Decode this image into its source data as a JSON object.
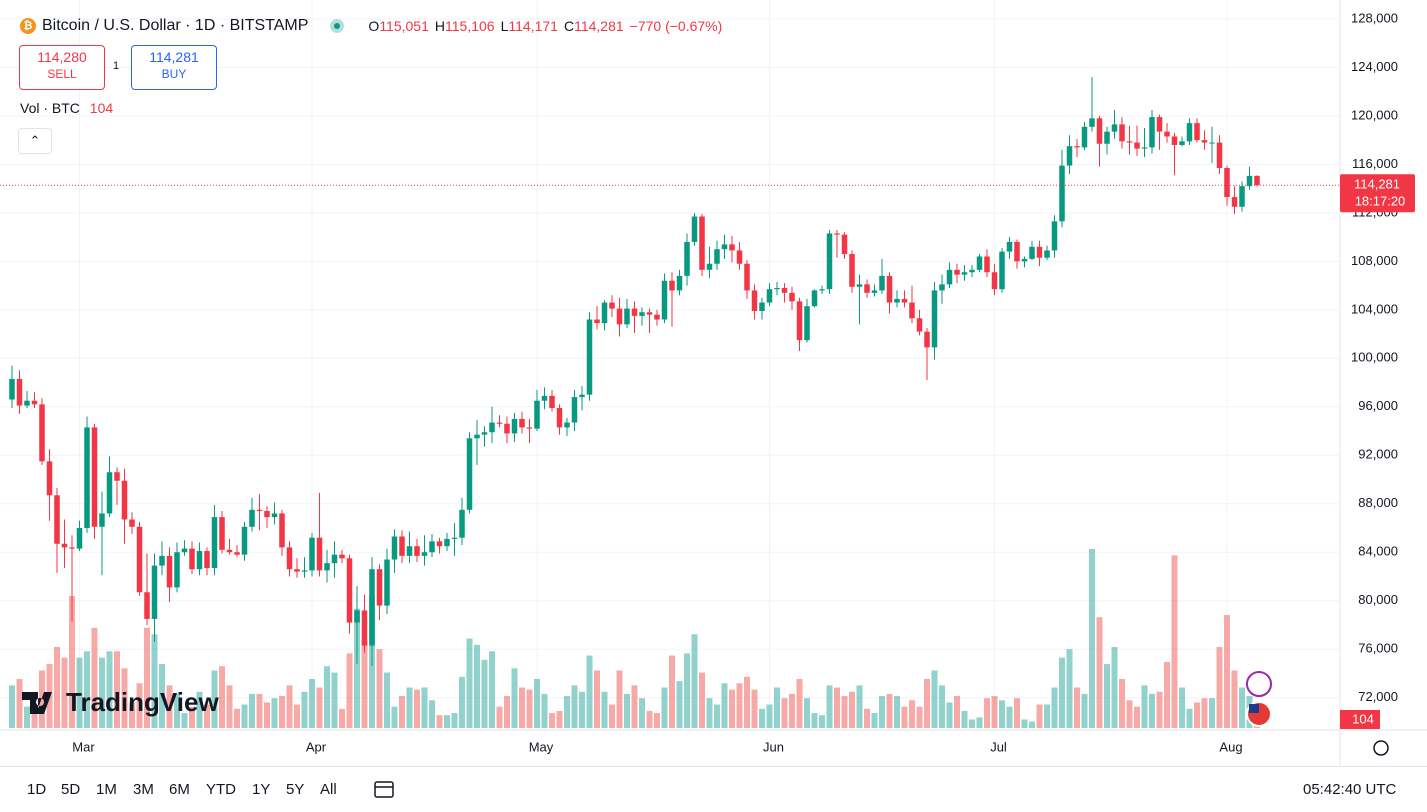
{
  "header": {
    "symbol": "Bitcoin / U.S. Dollar · 1D · BITSTAMP",
    "ohlc": [
      {
        "label": "O",
        "value": "115,051"
      },
      {
        "label": "H",
        "value": "115,106"
      },
      {
        "label": "L",
        "value": "114,171"
      },
      {
        "label": "C",
        "value": "114,281"
      }
    ],
    "change": "−770 (−0.67%)",
    "sell": {
      "price": "114,280",
      "label": "SELL"
    },
    "spread": "1",
    "buy": {
      "price": "114,281",
      "label": "BUY"
    },
    "volume_title": "Vol · BTC"
  },
  "toolbar": {
    "ranges": [
      "1D",
      "5D",
      "1M",
      "3M",
      "6M",
      "YTD",
      "1Y",
      "5Y",
      "All"
    ],
    "clock": "05:42:40 UTC"
  },
  "logo": "TradingView",
  "chart_data": {
    "type": "candlestick",
    "up_color": "#089981",
    "down_color": "#f23645",
    "volume_up_color": "#26a69a",
    "volume_down_color": "#ef5350",
    "grid": true,
    "categories": [
      null,
      null,
      null,
      null,
      null,
      null,
      null,
      null,
      null,
      "Mar",
      null,
      null,
      null,
      null,
      null,
      null,
      null,
      null,
      null,
      null,
      null,
      null,
      null,
      null,
      null,
      null,
      null,
      null,
      null,
      null,
      null,
      null,
      null,
      null,
      null,
      null,
      null,
      null,
      null,
      null,
      "Apr",
      null,
      null,
      null,
      null,
      null,
      null,
      null,
      null,
      null,
      null,
      null,
      null,
      null,
      null,
      null,
      null,
      null,
      null,
      null,
      null,
      null,
      null,
      null,
      null,
      null,
      null,
      null,
      null,
      null,
      "May",
      null,
      null,
      null,
      null,
      null,
      null,
      null,
      null,
      null,
      null,
      null,
      null,
      null,
      null,
      null,
      null,
      null,
      null,
      null,
      null,
      null,
      null,
      null,
      null,
      null,
      null,
      null,
      null,
      null,
      null,
      "Jun",
      null,
      null,
      null,
      null,
      null,
      null,
      null,
      null,
      null,
      null,
      null,
      null,
      null,
      null,
      null,
      null,
      null,
      null,
      null,
      null,
      null,
      null,
      null,
      null,
      null,
      null,
      null,
      null,
      null,
      "Jul",
      null,
      null,
      null,
      null,
      null,
      null,
      null,
      null,
      null,
      null,
      null,
      null,
      null,
      null,
      null,
      null,
      null,
      null,
      null,
      null,
      null,
      null,
      null,
      null,
      null,
      null,
      null,
      null,
      null,
      null,
      "Aug",
      null,
      null,
      null,
      null
    ],
    "open": [
      96600,
      98300,
      96100,
      96500,
      96200,
      91500,
      88700,
      84700,
      84400,
      84300,
      86000,
      94300,
      86100,
      87200,
      90600,
      89900,
      86700,
      86100,
      80700,
      78500,
      82900,
      83700,
      81100,
      84000,
      84300,
      82600,
      84100,
      82700,
      86900,
      84200,
      84000,
      83800,
      86100,
      87500,
      87400,
      86900,
      87200,
      84400,
      82600,
      82400,
      82500,
      85200,
      82500,
      83100,
      83800,
      83500,
      78200,
      79200,
      76300,
      82600,
      79600,
      83400,
      85300,
      83700,
      84500,
      83700,
      84000,
      84900,
      84500,
      85100,
      85200,
      87500,
      93400,
      93700,
      93900,
      94700,
      94600,
      93800,
      95000,
      94300,
      94200,
      96500,
      96900,
      95900,
      94300,
      94700,
      96800,
      97000,
      103200,
      102900,
      104600,
      104100,
      102800,
      104100,
      103500,
      103800,
      103600,
      103200,
      106400,
      105600,
      106800,
      109600,
      111700,
      107300,
      107800,
      109000,
      109400,
      108900,
      107800,
      105600,
      103900,
      104600,
      105700,
      105800,
      105400,
      104700,
      101500,
      104300,
      105600,
      105700,
      110300,
      110200,
      108600,
      105900,
      106100,
      105400,
      105600,
      106800,
      104600,
      104900,
      104600,
      103300,
      102200,
      100900,
      105600,
      106100,
      107300,
      106900,
      107100,
      107300,
      108400,
      107100,
      105700,
      108800,
      109600,
      108000,
      108200,
      109200,
      108300,
      108900,
      111300,
      115900,
      117500,
      117400,
      119100,
      119800,
      117700,
      118700,
      119300,
      117900,
      117800,
      117300,
      117400,
      119900,
      118700,
      118300,
      117600,
      117900,
      119400,
      118000,
      117800,
      117800,
      115700,
      113300,
      112500,
      114200,
      115051
    ],
    "high": [
      99400,
      99000,
      97300,
      97200,
      96700,
      92500,
      89300,
      86700,
      85400,
      86600,
      95200,
      94600,
      89000,
      91900,
      91000,
      90900,
      87300,
      86500,
      83900,
      83900,
      84900,
      84400,
      84800,
      85000,
      84900,
      84800,
      84400,
      87900,
      87400,
      85100,
      84600,
      86500,
      88500,
      88800,
      87800,
      88100,
      87500,
      84900,
      83500,
      83600,
      85600,
      88900,
      84200,
      84900,
      84200,
      83800,
      81200,
      80500,
      83600,
      83000,
      84300,
      85900,
      85800,
      85700,
      85100,
      85400,
      85500,
      85200,
      85600,
      86400,
      88500,
      93900,
      94900,
      94400,
      96000,
      95300,
      95200,
      95500,
      95600,
      95000,
      97400,
      97600,
      97400,
      96200,
      95100,
      97400,
      97700,
      103800,
      104300,
      104800,
      105200,
      105000,
      104900,
      104700,
      104200,
      104100,
      104000,
      107000,
      107100,
      107300,
      110300,
      112000,
      111900,
      109200,
      109700,
      110200,
      110100,
      109600,
      108100,
      106100,
      105000,
      106200,
      106300,
      106200,
      105900,
      105000,
      104900,
      105700,
      106000,
      110600,
      110600,
      110400,
      108900,
      106900,
      106500,
      106100,
      108200,
      107100,
      105600,
      105600,
      106000,
      104000,
      102500,
      106300,
      106900,
      107900,
      107800,
      107700,
      107700,
      108600,
      109000,
      107800,
      109100,
      110000,
      109800,
      108400,
      109700,
      109700,
      109300,
      111800,
      117200,
      118400,
      118100,
      119500,
      123200,
      120000,
      119100,
      120500,
      119900,
      119200,
      119200,
      119000,
      120500,
      120100,
      119400,
      118600,
      118300,
      119800,
      119800,
      118800,
      119100,
      118400,
      115900,
      114200,
      114600,
      115800,
      115106
    ],
    "low": [
      95900,
      95400,
      95900,
      95900,
      91200,
      86600,
      82300,
      82700,
      78300,
      84100,
      85600,
      85100,
      82100,
      86900,
      87900,
      84700,
      85500,
      80400,
      78000,
      76600,
      82100,
      79900,
      80700,
      83700,
      82200,
      82100,
      82100,
      82100,
      83900,
      83800,
      83600,
      83300,
      85700,
      85800,
      86000,
      86300,
      83700,
      82000,
      81900,
      81900,
      82000,
      82000,
      81500,
      81900,
      83100,
      77300,
      74800,
      75700,
      74600,
      78400,
      78900,
      82300,
      83100,
      83100,
      83200,
      82900,
      83600,
      83900,
      84100,
      83700,
      84600,
      87200,
      91200,
      92700,
      93000,
      94300,
      93000,
      93100,
      93800,
      93000,
      94000,
      95800,
      95600,
      93700,
      93600,
      94000,
      95700,
      96500,
      102400,
      102300,
      103400,
      101800,
      102500,
      102100,
      102700,
      102100,
      102700,
      102900,
      102600,
      105200,
      106000,
      109300,
      106800,
      106600,
      107300,
      108200,
      107900,
      107300,
      104900,
      103200,
      103200,
      104300,
      105200,
      104600,
      104000,
      100600,
      101300,
      104200,
      105300,
      105300,
      108300,
      108200,
      105400,
      102800,
      105000,
      105100,
      105300,
      103700,
      104200,
      104200,
      102900,
      101900,
      98200,
      99900,
      104500,
      105800,
      106200,
      106400,
      106700,
      107100,
      106700,
      105200,
      105400,
      108200,
      107400,
      107500,
      108100,
      107600,
      108100,
      108300,
      110800,
      115200,
      116600,
      117200,
      118700,
      115800,
      116800,
      118100,
      117300,
      116800,
      116700,
      116600,
      116900,
      117200,
      117800,
      115100,
      117500,
      117600,
      117800,
      117200,
      116100,
      115200,
      112600,
      111900,
      112100,
      113900,
      114171
    ],
    "close": [
      98300,
      96100,
      96500,
      96200,
      91500,
      88700,
      84700,
      84400,
      84300,
      86000,
      94300,
      86100,
      87200,
      90600,
      89900,
      86700,
      86100,
      80700,
      78500,
      82900,
      83700,
      81100,
      84000,
      84300,
      82600,
      84100,
      82700,
      86900,
      84200,
      84000,
      83800,
      86100,
      87500,
      87400,
      86900,
      87200,
      84400,
      82600,
      82400,
      82500,
      85200,
      82500,
      83100,
      83800,
      83500,
      78200,
      79200,
      76300,
      82600,
      79600,
      83400,
      85300,
      83700,
      84500,
      83700,
      84000,
      84900,
      84500,
      85100,
      85200,
      87500,
      93400,
      93700,
      93900,
      94700,
      94600,
      93800,
      95000,
      94300,
      94200,
      96500,
      96900,
      95900,
      94300,
      94700,
      96800,
      97000,
      103200,
      102900,
      104600,
      104100,
      102800,
      104100,
      103500,
      103800,
      103600,
      103200,
      106400,
      105600,
      106800,
      109600,
      111700,
      107300,
      107800,
      109000,
      109400,
      108900,
      107800,
      105600,
      103900,
      104600,
      105700,
      105800,
      105400,
      104700,
      101500,
      104300,
      105600,
      105700,
      110300,
      110200,
      108600,
      105900,
      106100,
      105400,
      105600,
      106800,
      104600,
      104900,
      104600,
      103300,
      102200,
      100900,
      105600,
      106100,
      107300,
      106900,
      107100,
      107300,
      108400,
      107100,
      105700,
      108800,
      109600,
      108000,
      108200,
      109200,
      108300,
      108900,
      111300,
      115900,
      117500,
      117400,
      119100,
      119800,
      117700,
      118700,
      119300,
      117900,
      117800,
      117300,
      117400,
      119900,
      118700,
      118300,
      117600,
      117900,
      119400,
      118000,
      117800,
      117800,
      115700,
      113300,
      112500,
      114200,
      115051,
      114281
    ],
    "volume": [
      200,
      230,
      100,
      90,
      270,
      300,
      380,
      330,
      620,
      330,
      360,
      470,
      330,
      360,
      360,
      280,
      120,
      210,
      470,
      440,
      300,
      200,
      160,
      70,
      100,
      170,
      110,
      270,
      290,
      200,
      90,
      110,
      160,
      160,
      120,
      140,
      150,
      200,
      110,
      170,
      230,
      190,
      290,
      260,
      90,
      350,
      560,
      410,
      620,
      370,
      260,
      100,
      150,
      190,
      180,
      190,
      130,
      60,
      60,
      70,
      240,
      420,
      390,
      320,
      360,
      100,
      150,
      280,
      190,
      180,
      230,
      160,
      70,
      80,
      150,
      200,
      170,
      340,
      270,
      170,
      110,
      270,
      160,
      200,
      140,
      80,
      70,
      190,
      340,
      220,
      350,
      440,
      260,
      140,
      110,
      210,
      180,
      210,
      240,
      180,
      90,
      110,
      190,
      140,
      160,
      230,
      140,
      70,
      60,
      200,
      190,
      150,
      170,
      200,
      90,
      70,
      150,
      160,
      150,
      100,
      130,
      100,
      230,
      270,
      200,
      120,
      150,
      80,
      40,
      50,
      140,
      150,
      130,
      100,
      140,
      40,
      30,
      110,
      110,
      190,
      330,
      370,
      190,
      160,
      840,
      520,
      300,
      380,
      230,
      130,
      100,
      200,
      160,
      170,
      310,
      810,
      190,
      90,
      120,
      140,
      140,
      380,
      530,
      270,
      190,
      150,
      104
    ],
    "ylim": [
      69500,
      128900
    ],
    "yticks": [
      {
        "value": 72000,
        "label": "72,000"
      },
      {
        "value": 76000,
        "label": "76,000"
      },
      {
        "value": 80000,
        "label": "80,000"
      },
      {
        "value": 84000,
        "label": "84,000"
      },
      {
        "value": 88000,
        "label": "88,000"
      },
      {
        "value": 92000,
        "label": "92,000"
      },
      {
        "value": 96000,
        "label": "96,000"
      },
      {
        "value": 100000,
        "label": "100,000"
      },
      {
        "value": 104000,
        "label": "104,000"
      },
      {
        "value": 108000,
        "label": "108,000"
      },
      {
        "value": 112000,
        "label": "112,000"
      },
      {
        "value": 116000,
        "label": "116,000"
      },
      {
        "value": 120000,
        "label": "120,000"
      },
      {
        "value": 124000,
        "label": "124,000"
      },
      {
        "value": 128000,
        "label": "128,000"
      }
    ],
    "price_label": {
      "price": "114,281",
      "countdown": "18:17:20"
    }
  }
}
